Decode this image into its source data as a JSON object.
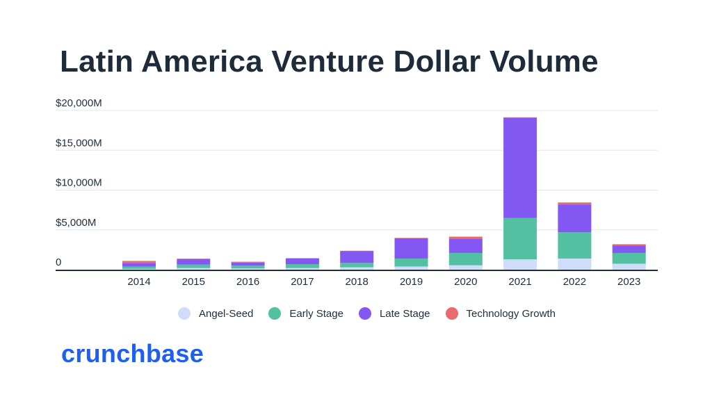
{
  "chart_data": {
    "type": "bar",
    "stacked": true,
    "title": "Latin America Venture Dollar Volume",
    "categories": [
      "2014",
      "2015",
      "2016",
      "2017",
      "2018",
      "2019",
      "2020",
      "2021",
      "2022",
      "2023"
    ],
    "series": [
      {
        "name": "Angel-Seed",
        "color": "#cfddfb",
        "values": [
          100,
          200,
          150,
          200,
          300,
          400,
          550,
          1300,
          1400,
          750
        ]
      },
      {
        "name": "Early Stage",
        "color": "#52c0a1",
        "values": [
          300,
          450,
          350,
          500,
          550,
          1000,
          1550,
          5200,
          3300,
          1350
        ]
      },
      {
        "name": "Late Stage",
        "color": "#8358f2",
        "values": [
          450,
          700,
          400,
          700,
          1500,
          2550,
          1800,
          12600,
          3500,
          950
        ]
      },
      {
        "name": "Technology Growth",
        "color": "#ea6b6e",
        "values": [
          250,
          30,
          100,
          50,
          30,
          50,
          250,
          50,
          250,
          150
        ]
      }
    ],
    "yticks": [
      0,
      5000,
      10000,
      15000,
      20000
    ],
    "ytick_labels": [
      "0",
      "$5,000M",
      "$10,000M",
      "$15,000M",
      "$20,000M"
    ],
    "ylim": [
      0,
      20000
    ],
    "grid": true,
    "legend_position": "bottom"
  },
  "brand": "crunchbase"
}
